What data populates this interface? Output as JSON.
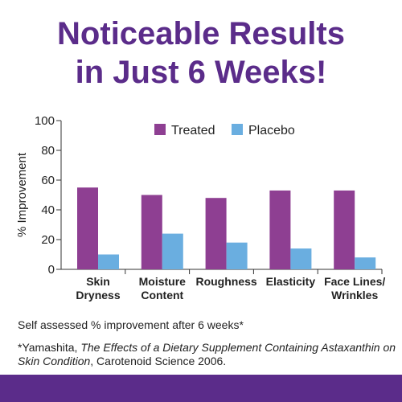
{
  "headline": {
    "line1": "Noticeable Results",
    "line2": "in Just 6 Weeks!"
  },
  "chart_data": {
    "type": "bar",
    "categories": [
      [
        "Skin",
        "Dryness"
      ],
      [
        "Moisture",
        "Content"
      ],
      [
        "Roughness"
      ],
      [
        "Elasticity"
      ],
      [
        "Face Lines/",
        "Wrinkles"
      ]
    ],
    "series": [
      {
        "name": "Treated",
        "color": "#8e3f92",
        "values": [
          55,
          50,
          48,
          53,
          53
        ]
      },
      {
        "name": "Placebo",
        "color": "#6aaee0",
        "values": [
          10,
          24,
          18,
          14,
          8
        ]
      }
    ],
    "ylabel": "% Improvement",
    "ylim": [
      0,
      100
    ],
    "yticks": [
      0,
      20,
      40,
      60,
      80,
      100
    ],
    "grid": false,
    "legend": "top"
  },
  "footnotes": {
    "assessment": "Self assessed % improvement after 6 weeks*",
    "citation_prefix": "*Yamashita, ",
    "citation_title": "The Effects of a Dietary Supplement Containing Astaxanthin on Skin Condition",
    "citation_suffix": ", Carotenoid Science 2006."
  },
  "colors": {
    "brand_purple": "#5b2c8a",
    "treated": "#8e3f92",
    "placebo": "#6aaee0"
  }
}
